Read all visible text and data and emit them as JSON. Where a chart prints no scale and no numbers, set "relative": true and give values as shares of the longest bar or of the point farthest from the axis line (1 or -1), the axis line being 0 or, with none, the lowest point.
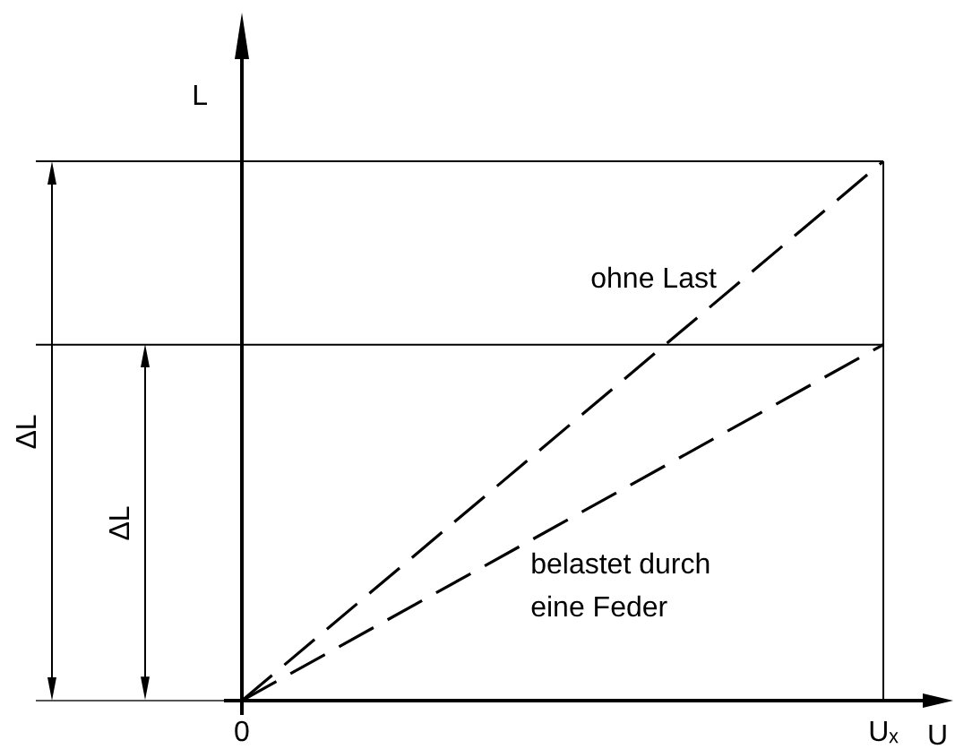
{
  "chart_data": {
    "type": "line",
    "xlabel": "U",
    "ylabel": "L",
    "relative": true,
    "categories": [
      "0",
      "Uₓ"
    ],
    "series": [
      {
        "name": "ohne Last",
        "color": "#000000",
        "values": [
          0,
          1
        ]
      },
      {
        "name": "belastet durch eine Feder",
        "color": "#000000",
        "values": [
          0,
          0.66
        ]
      }
    ],
    "ref_lines": [
      {
        "axis": "y",
        "value": 1
      },
      {
        "axis": "y",
        "value": 0.66
      },
      {
        "axis": "x",
        "value": "Uₓ"
      }
    ],
    "annotations": [
      "ΔL",
      "ΔL"
    ],
    "line_style": "dashed",
    "tick_labels": "x"
  }
}
